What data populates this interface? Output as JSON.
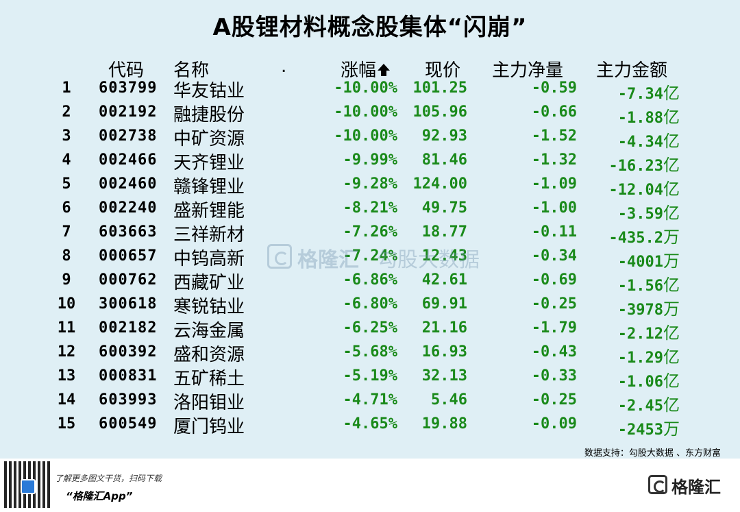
{
  "title": "A股锂材料概念股集体“闪崩”",
  "headers": {
    "code": "代码",
    "name": "名称",
    "dot": ".",
    "change": "涨幅",
    "price": "现价",
    "net": "主力净量",
    "amount": "主力金额"
  },
  "rows": [
    {
      "idx": "1",
      "code": "603799",
      "name": "华友钴业",
      "change": "-10.00%",
      "price": "101.25",
      "net": "-0.59",
      "amount": "-7.34",
      "unit": "亿"
    },
    {
      "idx": "2",
      "code": "002192",
      "name": "融捷股份",
      "change": "-10.00%",
      "price": "105.96",
      "net": "-0.66",
      "amount": "-1.88",
      "unit": "亿"
    },
    {
      "idx": "3",
      "code": "002738",
      "name": "中矿资源",
      "change": "-10.00%",
      "price": "92.93",
      "net": "-1.52",
      "amount": "-4.34",
      "unit": "亿"
    },
    {
      "idx": "4",
      "code": "002466",
      "name": "天齐锂业",
      "change": "-9.99%",
      "price": "81.46",
      "net": "-1.32",
      "amount": "-16.23",
      "unit": "亿"
    },
    {
      "idx": "5",
      "code": "002460",
      "name": "赣锋锂业",
      "change": "-9.28%",
      "price": "124.00",
      "net": "-1.09",
      "amount": "-12.04",
      "unit": "亿"
    },
    {
      "idx": "6",
      "code": "002240",
      "name": "盛新锂能",
      "change": "-8.21%",
      "price": "49.75",
      "net": "-1.00",
      "amount": "-3.59",
      "unit": "亿"
    },
    {
      "idx": "7",
      "code": "603663",
      "name": "三祥新材",
      "change": "-7.26%",
      "price": "18.77",
      "net": "-0.11",
      "amount": "-435.2",
      "unit": "万"
    },
    {
      "idx": "8",
      "code": "000657",
      "name": "中钨高新",
      "change": "-7.24%",
      "price": "12.43",
      "net": "-0.34",
      "amount": "-4001",
      "unit": "万"
    },
    {
      "idx": "9",
      "code": "000762",
      "name": "西藏矿业",
      "change": "-6.86%",
      "price": "42.61",
      "net": "-0.69",
      "amount": "-1.56",
      "unit": "亿"
    },
    {
      "idx": "10",
      "code": "300618",
      "name": "寒锐钴业",
      "change": "-6.80%",
      "price": "69.91",
      "net": "-0.25",
      "amount": "-3978",
      "unit": "万"
    },
    {
      "idx": "11",
      "code": "002182",
      "name": "云海金属",
      "change": "-6.25%",
      "price": "21.16",
      "net": "-1.79",
      "amount": "-2.12",
      "unit": "亿"
    },
    {
      "idx": "12",
      "code": "600392",
      "name": "盛和资源",
      "change": "-5.68%",
      "price": "16.93",
      "net": "-0.43",
      "amount": "-1.29",
      "unit": "亿"
    },
    {
      "idx": "13",
      "code": "000831",
      "name": "五矿稀土",
      "change": "-5.19%",
      "price": "32.13",
      "net": "-0.33",
      "amount": "-1.06",
      "unit": "亿"
    },
    {
      "idx": "14",
      "code": "603993",
      "name": "洛阳钼业",
      "change": "-4.71%",
      "price": "5.46",
      "net": "-0.25",
      "amount": "-2.45",
      "unit": "亿"
    },
    {
      "idx": "15",
      "code": "600549",
      "name": "厦门钨业",
      "change": "-4.65%",
      "price": "19.88",
      "net": "-0.09",
      "amount": "-2453",
      "unit": "万"
    }
  ],
  "watermark": {
    "brand": "格隆汇",
    "sub": "勾股大数据"
  },
  "source": "数据支持：勾股大数据 、东方财富",
  "footer": {
    "line1": "了解更多图文干货，扫码下载",
    "line2": "“格隆汇App”",
    "brand": "格隆汇"
  },
  "colors": {
    "background": "#dfeff5",
    "value_green": "#1a8a1a"
  }
}
